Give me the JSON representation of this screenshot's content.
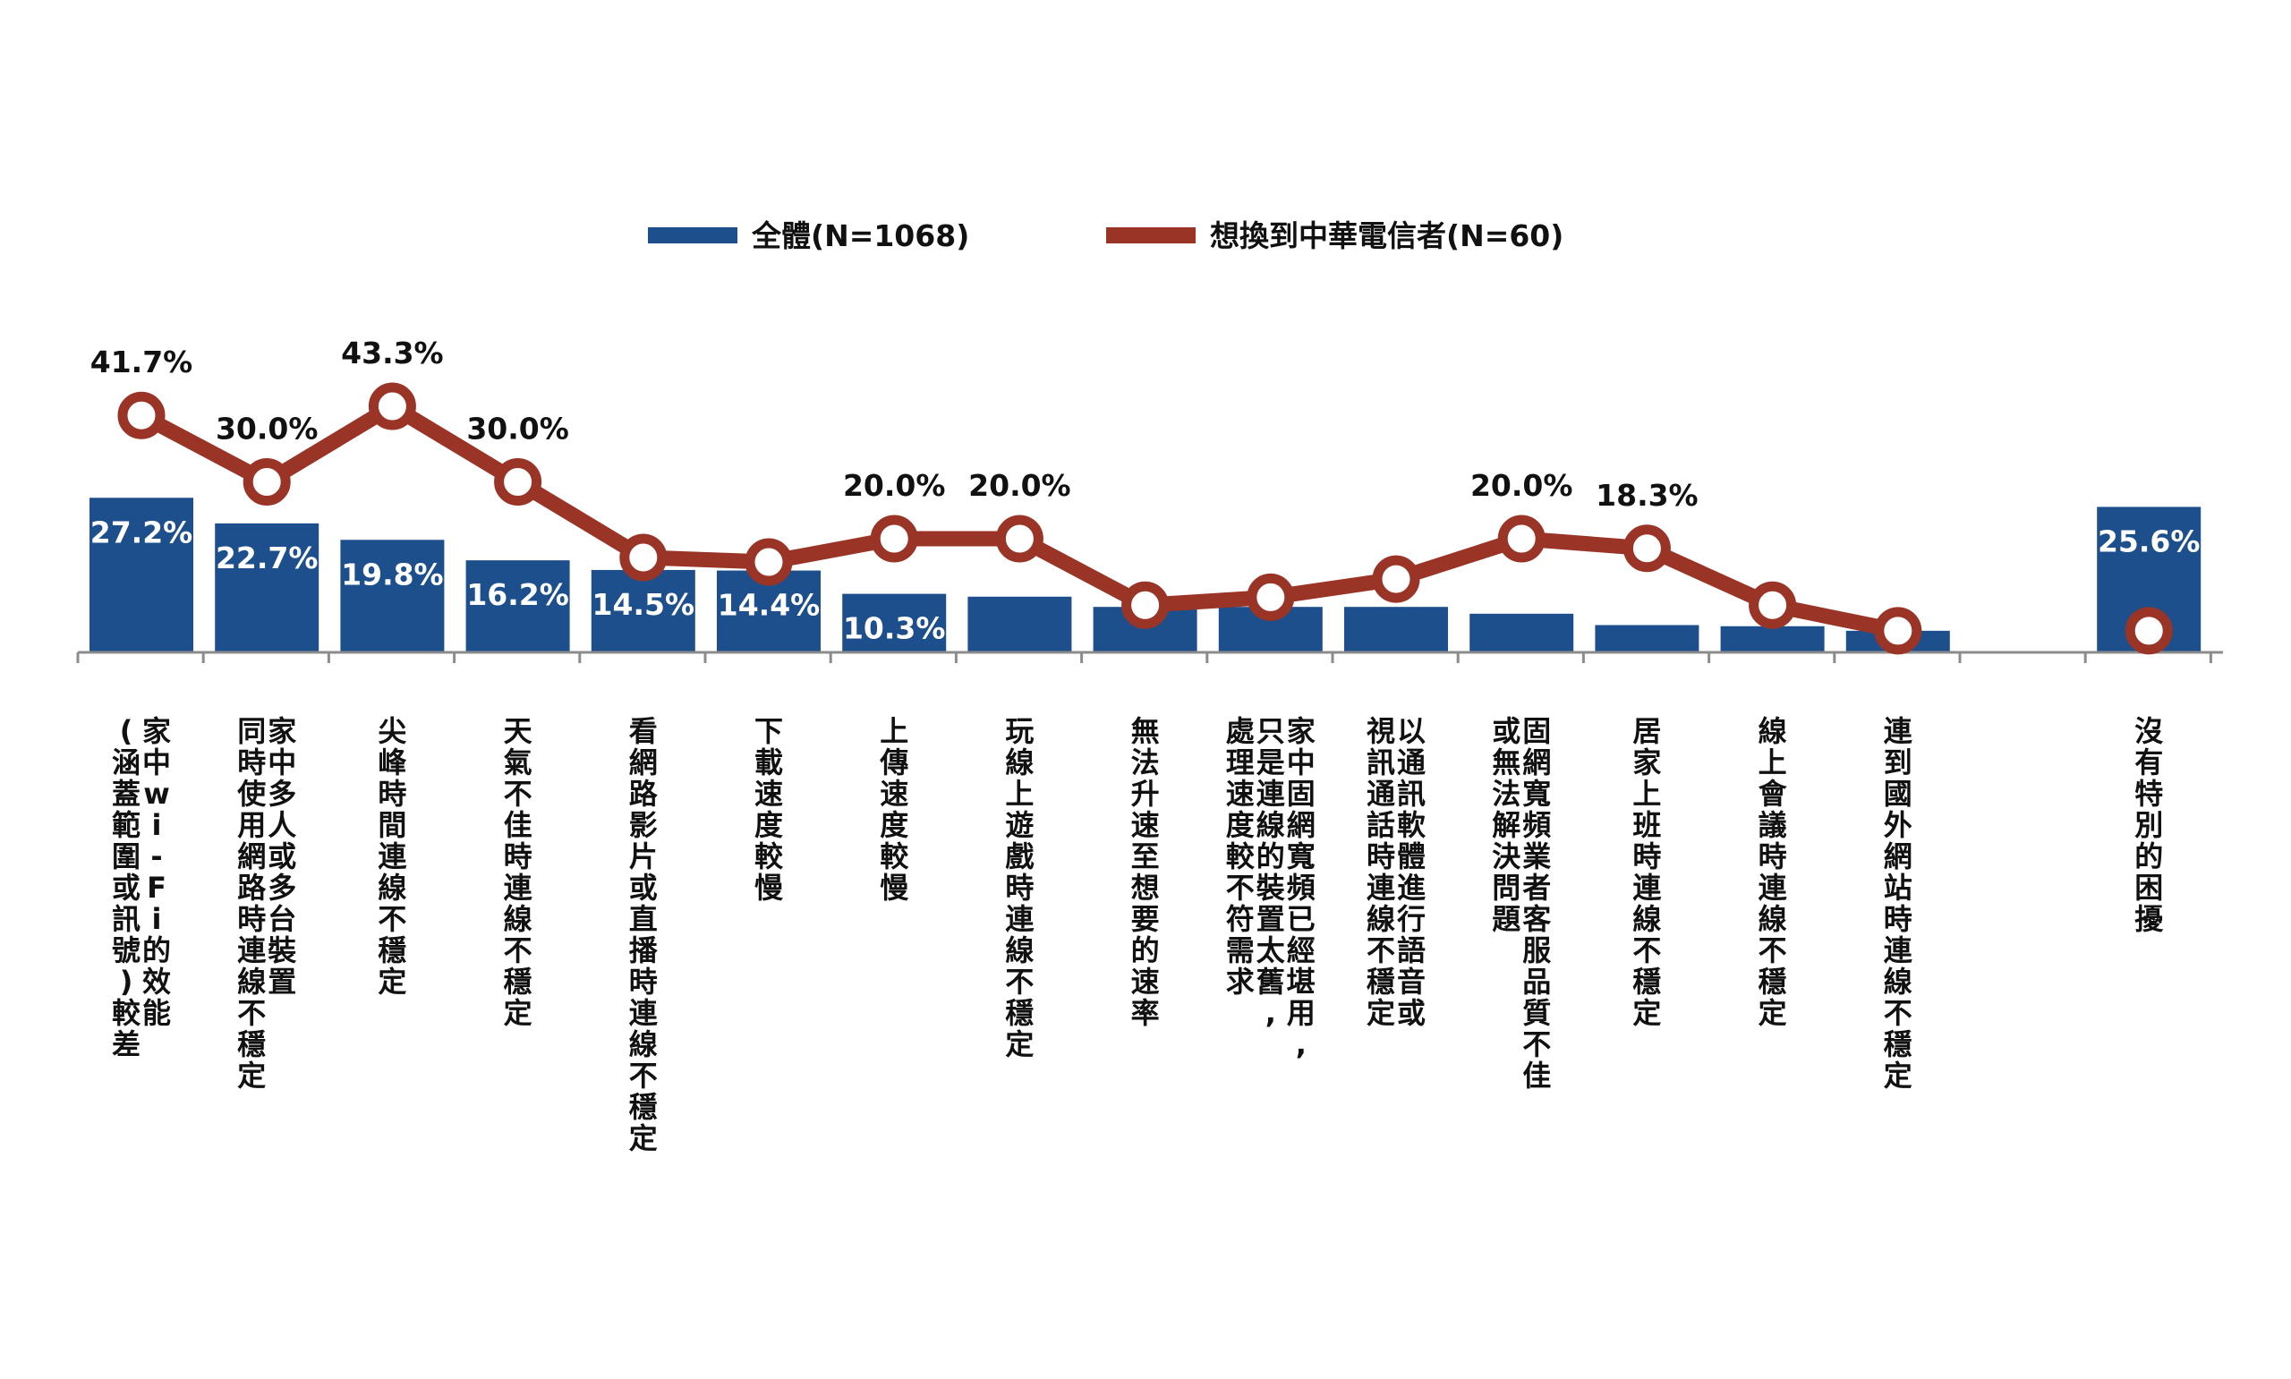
{
  "chart_data": {
    "type": "bar",
    "title": "",
    "xlabel": "",
    "ylabel": "",
    "legend_position": "top-center",
    "grid": false,
    "colors": {
      "bar": "#1d4f8c",
      "line": "#9a3426",
      "marker_fill": "#ffffff",
      "axis": "#8c8c8c"
    },
    "legend": [
      "全體(N=1068)",
      "想換到中華電信者(N=60)"
    ],
    "categories": [
      [
        "家中wi-Fi的效能",
        "(涵蓋範圍或訊號)較差"
      ],
      [
        "家中多人或多台裝置",
        "同時使用網路時連線不穩定"
      ],
      [
        "尖峰時間連線不穩定"
      ],
      [
        "天氣不佳時連線不穩定"
      ],
      [
        "看網路影片或直播時連線不穩定"
      ],
      [
        "下載速度較慢"
      ],
      [
        "上傳速度較慢"
      ],
      [
        "玩線上遊戲時連線不穩定"
      ],
      [
        "無法升速至想要的速率"
      ],
      [
        "家中固網寬頻已經堪用,",
        "只是連線的裝置太舊,",
        "處理速度較不符需求"
      ],
      [
        "以通訊軟體進行語音或",
        "視訊通話時連線不穩定"
      ],
      [
        "固網寬頻業者客服品質不佳",
        "或無法解決問題"
      ],
      [
        "居家上班時連線不穩定"
      ],
      [
        "線上會議時連線不穩定"
      ],
      [
        "連到國外網站時連線不穩定"
      ],
      [
        ""
      ],
      [
        "沒有特別的困擾"
      ]
    ],
    "series": [
      {
        "name": "全體(N=1068)",
        "type": "bar",
        "values": [
          27.2,
          22.7,
          19.8,
          16.2,
          14.5,
          14.4,
          10.3,
          9.8,
          8.0,
          8.0,
          8.0,
          6.8,
          4.8,
          4.6,
          3.8,
          null,
          25.6
        ],
        "labels": [
          "27.2%",
          "22.7%",
          "19.8%",
          "16.2%",
          "14.5%",
          "14.4%",
          "10.3%",
          "",
          "",
          "",
          "",
          "",
          "",
          "",
          "",
          "",
          "25.6%"
        ]
      },
      {
        "name": "想換到中華電信者(N=60)",
        "type": "line",
        "values": [
          41.7,
          30.0,
          43.3,
          30.0,
          16.7,
          15.9,
          20.0,
          20.0,
          8.3,
          9.7,
          12.9,
          20.0,
          18.3,
          8.3,
          3.8,
          null,
          3.8
        ],
        "labels": [
          "41.7%",
          "30.0%",
          "43.3%",
          "30.0%",
          "",
          "",
          "20.0%",
          "20.0%",
          "",
          "",
          "",
          "20.0%",
          "18.3%",
          "",
          "",
          "",
          ""
        ]
      }
    ]
  }
}
